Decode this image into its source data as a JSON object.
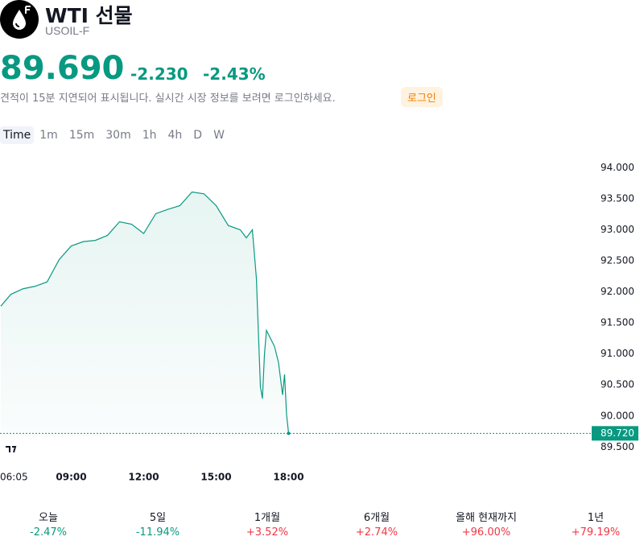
{
  "header": {
    "title": "WTI 선물",
    "symbol": "USOIL-F"
  },
  "quote": {
    "price": "89.690",
    "change": "-2.230",
    "change_pct": "-2.43%",
    "notice": "견적이 15분 지연되어 표시됩니다. 실시간 시장 정보를 보려면 로그인하세요.",
    "login": "로그인"
  },
  "tabs": [
    "Time",
    "1m",
    "15m",
    "30m",
    "1h",
    "4h",
    "D",
    "W"
  ],
  "chart_data": {
    "type": "line",
    "color": "#089981",
    "x": [
      "06:05",
      "06:30",
      "07:00",
      "07:30",
      "08:00",
      "08:30",
      "09:00",
      "09:30",
      "10:00",
      "10:30",
      "11:00",
      "11:30",
      "12:00",
      "12:30",
      "13:00",
      "13:30",
      "14:00",
      "14:30",
      "15:00",
      "15:30",
      "16:00",
      "16:15",
      "16:30",
      "16:40",
      "16:50",
      "16:55",
      "17:00",
      "17:05",
      "17:15",
      "17:25",
      "17:35",
      "17:45",
      "17:50",
      "17:55",
      "18:00"
    ],
    "values": [
      91.77,
      91.96,
      92.05,
      92.09,
      92.16,
      92.52,
      92.74,
      92.81,
      92.83,
      92.91,
      93.13,
      93.09,
      92.94,
      93.26,
      93.33,
      93.39,
      93.61,
      93.58,
      93.39,
      93.07,
      93.0,
      92.87,
      93.0,
      92.22,
      90.47,
      90.28,
      90.99,
      91.38,
      91.25,
      91.12,
      90.86,
      90.34,
      90.67,
      90.02,
      89.72
    ],
    "ylim": [
      89.4,
      94.2
    ],
    "yticks": [
      {
        "value": 89.5,
        "label": "89.500"
      },
      {
        "value": 90,
        "label": "90.000"
      },
      {
        "value": 90.5,
        "label": "90.500"
      },
      {
        "value": 91,
        "label": "91.000"
      },
      {
        "value": 91.5,
        "label": "91.500"
      },
      {
        "value": 92,
        "label": "92.000"
      },
      {
        "value": 92.5,
        "label": "92.500"
      },
      {
        "value": 93,
        "label": "93.000"
      },
      {
        "value": 93.5,
        "label": "93.500"
      },
      {
        "value": 94,
        "label": "94.000"
      }
    ],
    "xticks": [
      "06:05",
      "09:00",
      "12:00",
      "15:00",
      "18:00"
    ],
    "last_price": {
      "value": 89.72,
      "label": "89.720"
    }
  },
  "periods": [
    {
      "label": "오늘",
      "value": "-2.47%"
    },
    {
      "label": "5일",
      "value": "-11.94%"
    },
    {
      "label": "1개월",
      "value": "+3.52%"
    },
    {
      "label": "6개월",
      "value": "+2.74%"
    },
    {
      "label": "올해 현재까지",
      "value": "+96.00%"
    },
    {
      "label": "1년",
      "value": "+79.19%"
    }
  ]
}
